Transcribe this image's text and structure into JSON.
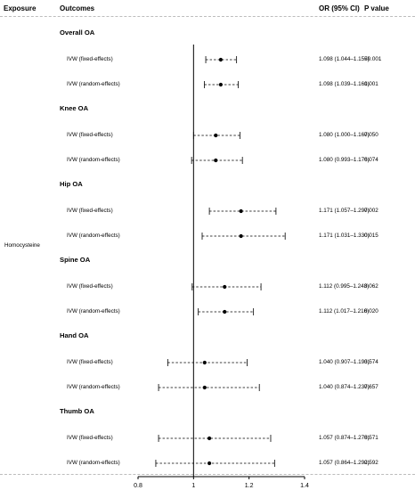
{
  "headers": {
    "exposure": "Exposure",
    "outcomes": "Outcomes",
    "or_ci": "OR (95% CI)",
    "p_value": "P value"
  },
  "exposure_name": "Homocysteine",
  "chart_data": {
    "type": "forest",
    "reference_line": 1,
    "xlim": [
      0.8,
      1.4
    ],
    "xticks": [
      "0.8",
      "1",
      "1.2",
      "1.4"
    ],
    "groups": [
      {
        "name": "Overall OA",
        "rows": [
          {
            "method": "IVW (fixed-effects)",
            "or": 1.098,
            "lo": 1.044,
            "hi": 1.155,
            "text": "1.098 (1.044–1.155)",
            "p": "<0.001"
          },
          {
            "method": "IVW (random-effects)",
            "or": 1.098,
            "lo": 1.039,
            "hi": 1.161,
            "text": "1.098 (1.039–1.161)",
            "p": "0.001"
          }
        ]
      },
      {
        "name": "Knee OA",
        "rows": [
          {
            "method": "IVW (fixed-effects)",
            "or": 1.08,
            "lo": 1.0,
            "hi": 1.167,
            "text": "1.080 (1.000–1.167)",
            "p": "0.050"
          },
          {
            "method": "IVW (random-effects)",
            "or": 1.08,
            "lo": 0.993,
            "hi": 1.176,
            "text": "1.080 (0.993–1.176)",
            "p": "0.074"
          }
        ]
      },
      {
        "name": "Hip OA",
        "rows": [
          {
            "method": "IVW (fixed-effects)",
            "or": 1.171,
            "lo": 1.057,
            "hi": 1.297,
            "text": "1.171 (1.057–1.297)",
            "p": "0.002"
          },
          {
            "method": "IVW (random-effects)",
            "or": 1.171,
            "lo": 1.031,
            "hi": 1.33,
            "text": "1.171 (1.031–1.330)",
            "p": "0.015"
          }
        ]
      },
      {
        "name": "Spine OA",
        "rows": [
          {
            "method": "IVW (fixed-effects)",
            "or": 1.112,
            "lo": 0.995,
            "hi": 1.243,
            "text": "1.112 (0.995–1.243)",
            "p": "0.062"
          },
          {
            "method": "IVW (random-effects)",
            "or": 1.112,
            "lo": 1.017,
            "hi": 1.216,
            "text": "1.112 (1.017–1.216)",
            "p": "0.020"
          }
        ]
      },
      {
        "name": "Hand OA",
        "rows": [
          {
            "method": "IVW (fixed-effects)",
            "or": 1.04,
            "lo": 0.907,
            "hi": 1.193,
            "text": "1.040 (0.907–1.193)",
            "p": "0.574"
          },
          {
            "method": "IVW (random-effects)",
            "or": 1.04,
            "lo": 0.874,
            "hi": 1.237,
            "text": "1.040 (0.874–1.237)",
            "p": "0.657"
          }
        ]
      },
      {
        "name": "Thumb OA",
        "rows": [
          {
            "method": "IVW (fixed-effects)",
            "or": 1.057,
            "lo": 0.874,
            "hi": 1.278,
            "text": "1.057 (0.874–1.278)",
            "p": "0.571"
          },
          {
            "method": "IVW (random-effects)",
            "or": 1.057,
            "lo": 0.864,
            "hi": 1.292,
            "text": "1.057 (0.864–1.292)",
            "p": "0.592"
          }
        ]
      }
    ]
  }
}
